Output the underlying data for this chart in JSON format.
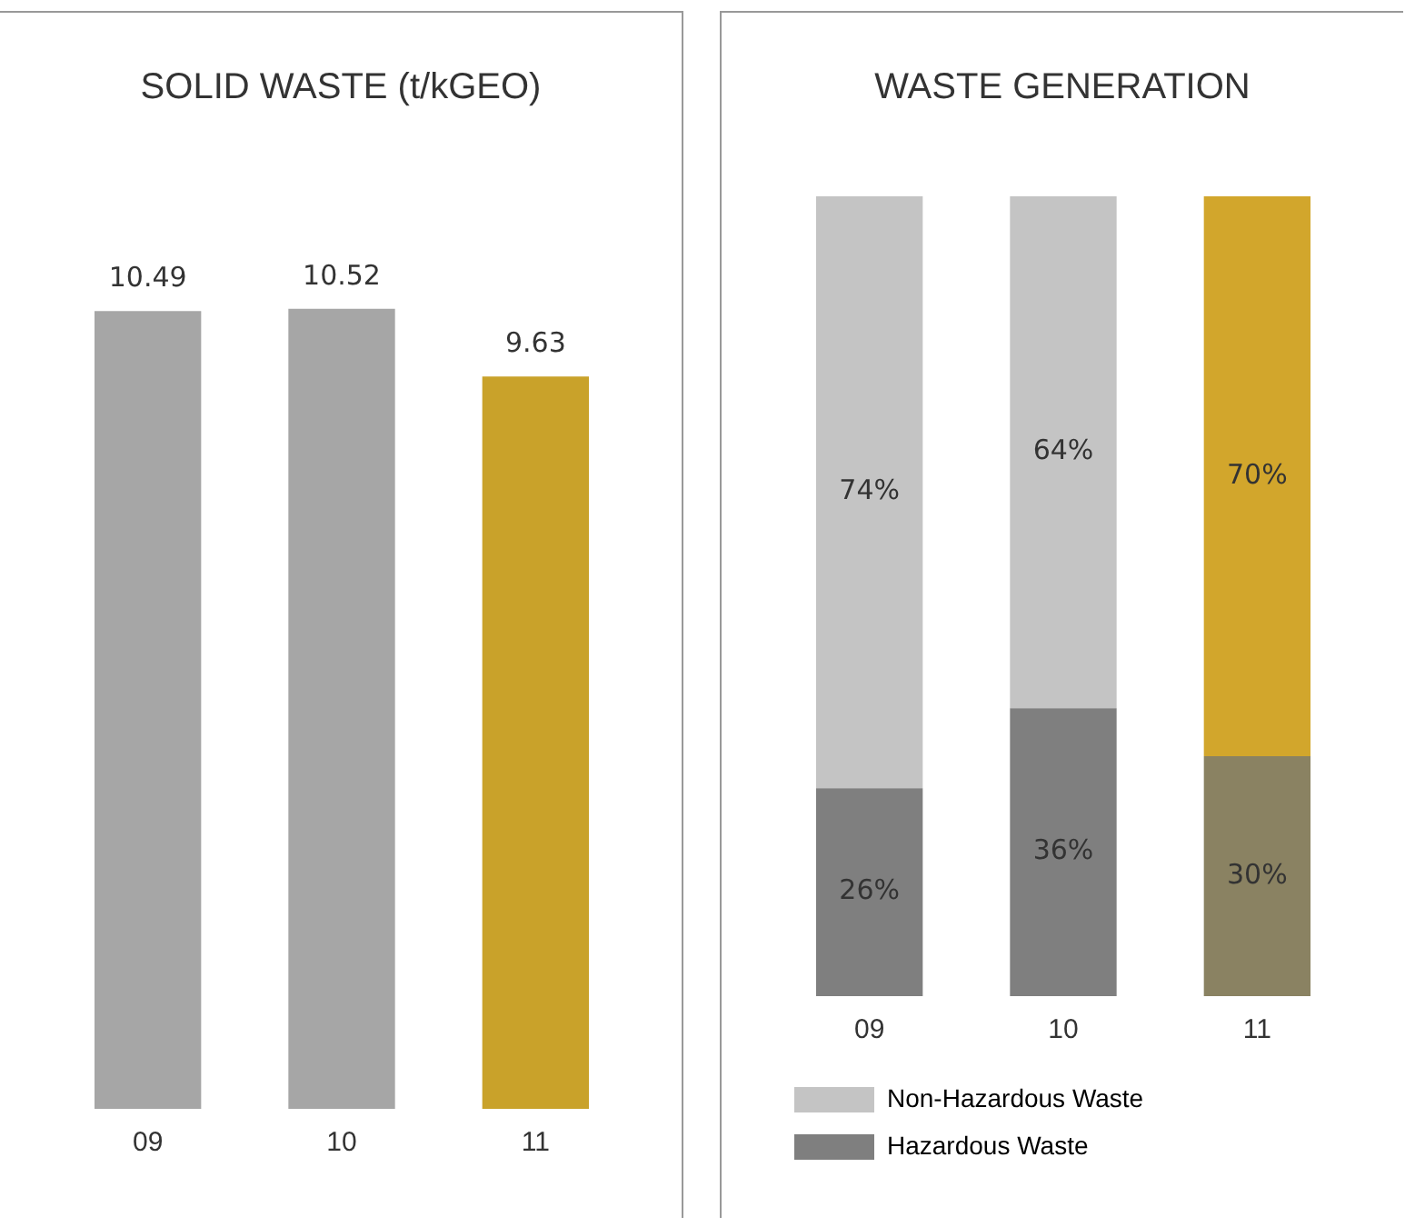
{
  "chart_data": [
    {
      "type": "bar",
      "title": "SOLID WASTE (t/kGEO)",
      "categories": [
        "09",
        "10",
        "11"
      ],
      "values": [
        10.49,
        10.52,
        9.63
      ],
      "colors": [
        "#a6a6a6",
        "#a6a6a6",
        "#c9a22a"
      ],
      "data_labels": true,
      "tick_labels": "x",
      "grid": false,
      "legend": false
    },
    {
      "type": "bar",
      "title": "WASTE GENERATION",
      "categories": [
        "09",
        "10",
        "11"
      ],
      "stacked": true,
      "ylim": [
        0,
        100
      ],
      "tick_labels": "x",
      "grid": false,
      "legend": "bottom",
      "series": [
        {
          "name": "Hazardous Waste",
          "color": "#7f7f7f",
          "colors": [
            "#7f7f7f",
            "#7f7f7f",
            "#8a8262"
          ],
          "values": [
            26,
            36,
            30
          ],
          "value_labels": [
            "26%",
            "36%",
            "30%"
          ]
        },
        {
          "name": "Non-Hazardous Waste",
          "color": "#c4c4c4",
          "colors": [
            "#c4c4c4",
            "#c4c4c4",
            "#d2a62c"
          ],
          "values": [
            74,
            64,
            70
          ],
          "value_labels": [
            "74%",
            "64%",
            "70%"
          ]
        }
      ]
    }
  ]
}
